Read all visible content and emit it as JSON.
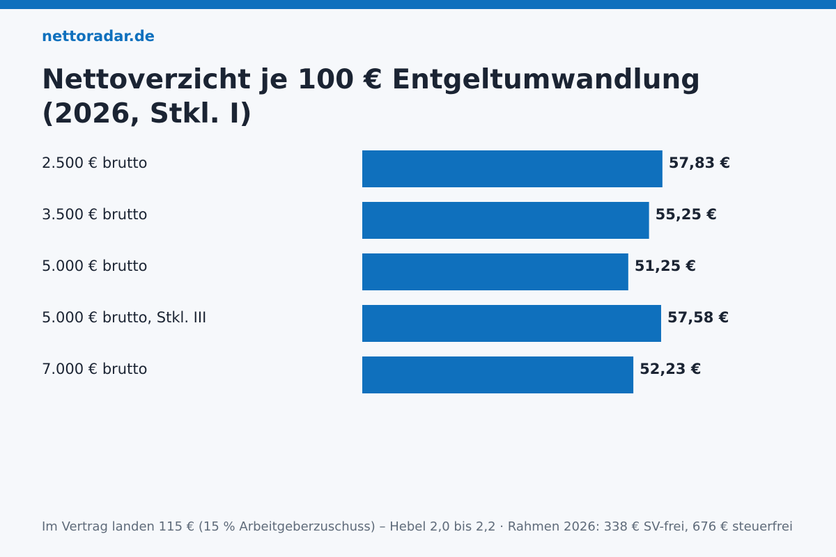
{
  "brand": "nettoradar.de",
  "title": "Nettoverzicht je 100 € Entgeltumwandlung (2026, Stkl. I)",
  "footnote": "Im Vertrag landen 115 € (15 % Arbeitgeberzuschuss) – Hebel 2,0 bis 2,2 · Rahmen 2026: 338 € SV-frei, 676 € steuerfrei",
  "colors": {
    "accent": "#0f70bd",
    "text": "#1b2433",
    "muted": "#5f6b7a",
    "background": "#f6f8fb"
  },
  "chart_data": {
    "type": "bar",
    "orientation": "horizontal",
    "categories": [
      "2.500 € brutto",
      "3.500 € brutto",
      "5.000 € brutto",
      "5.000 € brutto, Stkl. III",
      "7.000 € brutto"
    ],
    "values": [
      57.83,
      55.25,
      51.25,
      57.58,
      52.23
    ],
    "value_labels": [
      "57,83 €",
      "55,25 €",
      "51,25 €",
      "57,58 €",
      "52,23 €"
    ],
    "xlim": [
      0,
      100
    ],
    "grid": false,
    "legend": "none"
  }
}
